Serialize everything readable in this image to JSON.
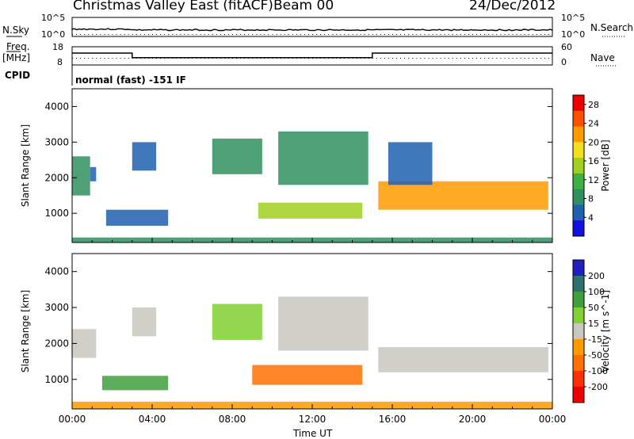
{
  "header": {
    "radar": "Christmas Valley East (fitACF)",
    "beam": "Beam 00",
    "date": "24/Dec/2012"
  },
  "noise_panel": {
    "left_label": "N.Sky",
    "left_ticks": [
      "10^5",
      "10^0"
    ],
    "right_label": "N.Search",
    "right_ticks": [
      "10^5",
      "10^0"
    ]
  },
  "freq_panel": {
    "left_label_1": "Freq.",
    "left_label_2": "[MHz]",
    "left_ticks": [
      "18",
      "8"
    ],
    "right_label": "Nave",
    "right_ticks": [
      "60",
      "0"
    ],
    "freq_steps_utc": [
      [
        0,
        14.5
      ],
      [
        3.0,
        12.0
      ],
      [
        15.0,
        14.5
      ],
      [
        24,
        14.5
      ]
    ]
  },
  "cpid": {
    "label": "CPID",
    "value": "normal (fast) -151 IF"
  },
  "colors": {
    "power": [
      "#1010e0",
      "#2060b0",
      "#2f8f5f",
      "#40b040",
      "#a0d020",
      "#f0e020",
      "#ff9a00",
      "#ff5000",
      "#ee0000"
    ],
    "velocity": [
      "#2020c0",
      "#2f7070",
      "#3fa040",
      "#80d030",
      "#c8c8c0",
      "#ff9a00",
      "#ff7000",
      "#ff3000",
      "#ee0000"
    ]
  },
  "chart_data": [
    {
      "type": "heatmap",
      "name": "power",
      "ylabel": "Slant Range [km]",
      "y_ticks": [
        "1000",
        "2000",
        "3000",
        "4000"
      ],
      "ylim": [
        180,
        4500
      ],
      "xlim": [
        0,
        24
      ],
      "colorbar_label": "Power [dB]",
      "colorbar_ticks": [
        "4",
        "8",
        "12",
        "16",
        "20",
        "24",
        "28"
      ],
      "colorbar_range": [
        0,
        30
      ],
      "regions": [
        {
          "t0": 0.0,
          "t1": 0.9,
          "r0": 1500,
          "r1": 2600,
          "v": 7
        },
        {
          "t0": 0.9,
          "t1": 1.2,
          "r0": 1900,
          "r1": 2300,
          "v": 5
        },
        {
          "t0": 1.7,
          "t1": 4.8,
          "r0": 650,
          "r1": 1100,
          "v": 4
        },
        {
          "t0": 3.0,
          "t1": 4.2,
          "r0": 2200,
          "r1": 3000,
          "v": 5
        },
        {
          "t0": 7.0,
          "t1": 9.5,
          "r0": 2100,
          "r1": 3100,
          "v": 9
        },
        {
          "t0": 9.3,
          "t1": 14.5,
          "r0": 850,
          "r1": 1300,
          "v": 14
        },
        {
          "t0": 10.3,
          "t1": 14.8,
          "r0": 1800,
          "r1": 3300,
          "v": 7
        },
        {
          "t0": 15.3,
          "t1": 23.8,
          "r0": 1100,
          "r1": 1900,
          "v": 20
        },
        {
          "t0": 15.8,
          "t1": 18.0,
          "r0": 1800,
          "r1": 3000,
          "v": 5
        },
        {
          "t0": 0.0,
          "t1": 24.0,
          "r0": 180,
          "r1": 320,
          "v": 8
        }
      ]
    },
    {
      "type": "heatmap",
      "name": "velocity",
      "ylabel": "Slant Range [km]",
      "y_ticks": [
        "1000",
        "2000",
        "3000",
        "4000"
      ],
      "ylim": [
        180,
        4500
      ],
      "xlim": [
        0,
        24
      ],
      "colorbar_label": "Velocity [m s^-1]",
      "colorbar_ticks": [
        "200",
        "100",
        "50",
        "15",
        "-15",
        "-50",
        "-100",
        "-200"
      ],
      "regions": [
        {
          "t0": 0.0,
          "t1": 1.2,
          "r0": 1600,
          "r1": 2400,
          "v": 0
        },
        {
          "t0": 1.5,
          "t1": 4.8,
          "r0": 700,
          "r1": 1100,
          "v": 70
        },
        {
          "t0": 3.0,
          "t1": 4.2,
          "r0": 2200,
          "r1": 3000,
          "v": 10
        },
        {
          "t0": 7.0,
          "t1": 9.5,
          "r0": 2100,
          "r1": 3100,
          "v": 20
        },
        {
          "t0": 9.0,
          "t1": 14.5,
          "r0": 850,
          "r1": 1400,
          "v": -60
        },
        {
          "t0": 10.3,
          "t1": 14.8,
          "r0": 1800,
          "r1": 3300,
          "v": 5
        },
        {
          "t0": 15.3,
          "t1": 23.8,
          "r0": 1200,
          "r1": 1900,
          "v": 0
        },
        {
          "t0": 0.0,
          "t1": 24.0,
          "r0": 180,
          "r1": 380,
          "v": -40
        }
      ]
    }
  ],
  "x_axis": {
    "label": "Time UT",
    "ticks": [
      "00:00",
      "04:00",
      "08:00",
      "12:00",
      "16:00",
      "20:00",
      "00:00"
    ]
  }
}
